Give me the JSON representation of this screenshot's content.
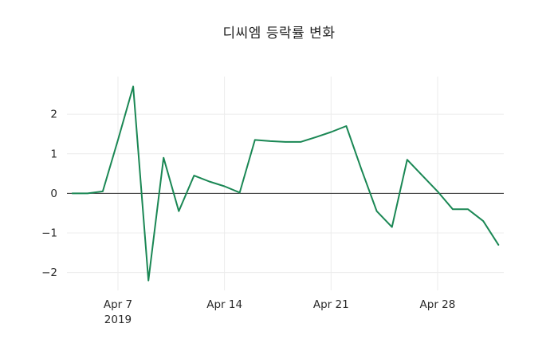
{
  "chart_data": {
    "type": "line",
    "title": "디씨엠 등락률 변화",
    "series_name": "등락률",
    "x": [
      "Apr 4",
      "Apr 5",
      "Apr 6",
      "Apr 7",
      "Apr 8",
      "Apr 9",
      "Apr 10",
      "Apr 11",
      "Apr 12",
      "Apr 13",
      "Apr 14",
      "Apr 15",
      "Apr 16",
      "Apr 17",
      "Apr 18",
      "Apr 19",
      "Apr 20",
      "Apr 21",
      "Apr 22",
      "Apr 23",
      "Apr 24",
      "Apr 25",
      "Apr 26",
      "Apr 27",
      "Apr 28",
      "Apr 29",
      "Apr 30",
      "May 1",
      "May 2"
    ],
    "values": [
      0,
      0,
      0.05,
      1.35,
      2.7,
      -2.2,
      0.9,
      -0.45,
      0.45,
      0.3,
      0.18,
      0.02,
      1.35,
      1.32,
      1.3,
      1.3,
      1.42,
      1.55,
      1.7,
      0.6,
      -0.45,
      -0.85,
      0.85,
      0.45,
      0.05,
      -0.4,
      -0.4,
      -0.7,
      -1.3
    ],
    "ylim": [
      -2.45,
      2.95
    ],
    "yticks": [
      -2,
      -1,
      0,
      1,
      2
    ],
    "xticks": [
      {
        "index": 3,
        "label": "Apr 7",
        "sublabel": "2019"
      },
      {
        "index": 10,
        "label": "Apr 14",
        "sublabel": ""
      },
      {
        "index": 17,
        "label": "Apr 21",
        "sublabel": ""
      },
      {
        "index": 24,
        "label": "Apr 28",
        "sublabel": ""
      }
    ],
    "zero_line": true,
    "grid": true,
    "legend": "none",
    "line_color": "#1a8754",
    "line_width": 2
  },
  "colors": {
    "background": "#ffffff",
    "grid": "#ececec",
    "zero_line": "#2b2b2b",
    "tick_label": "#2a2a2a",
    "title": "#1f1f1f"
  }
}
